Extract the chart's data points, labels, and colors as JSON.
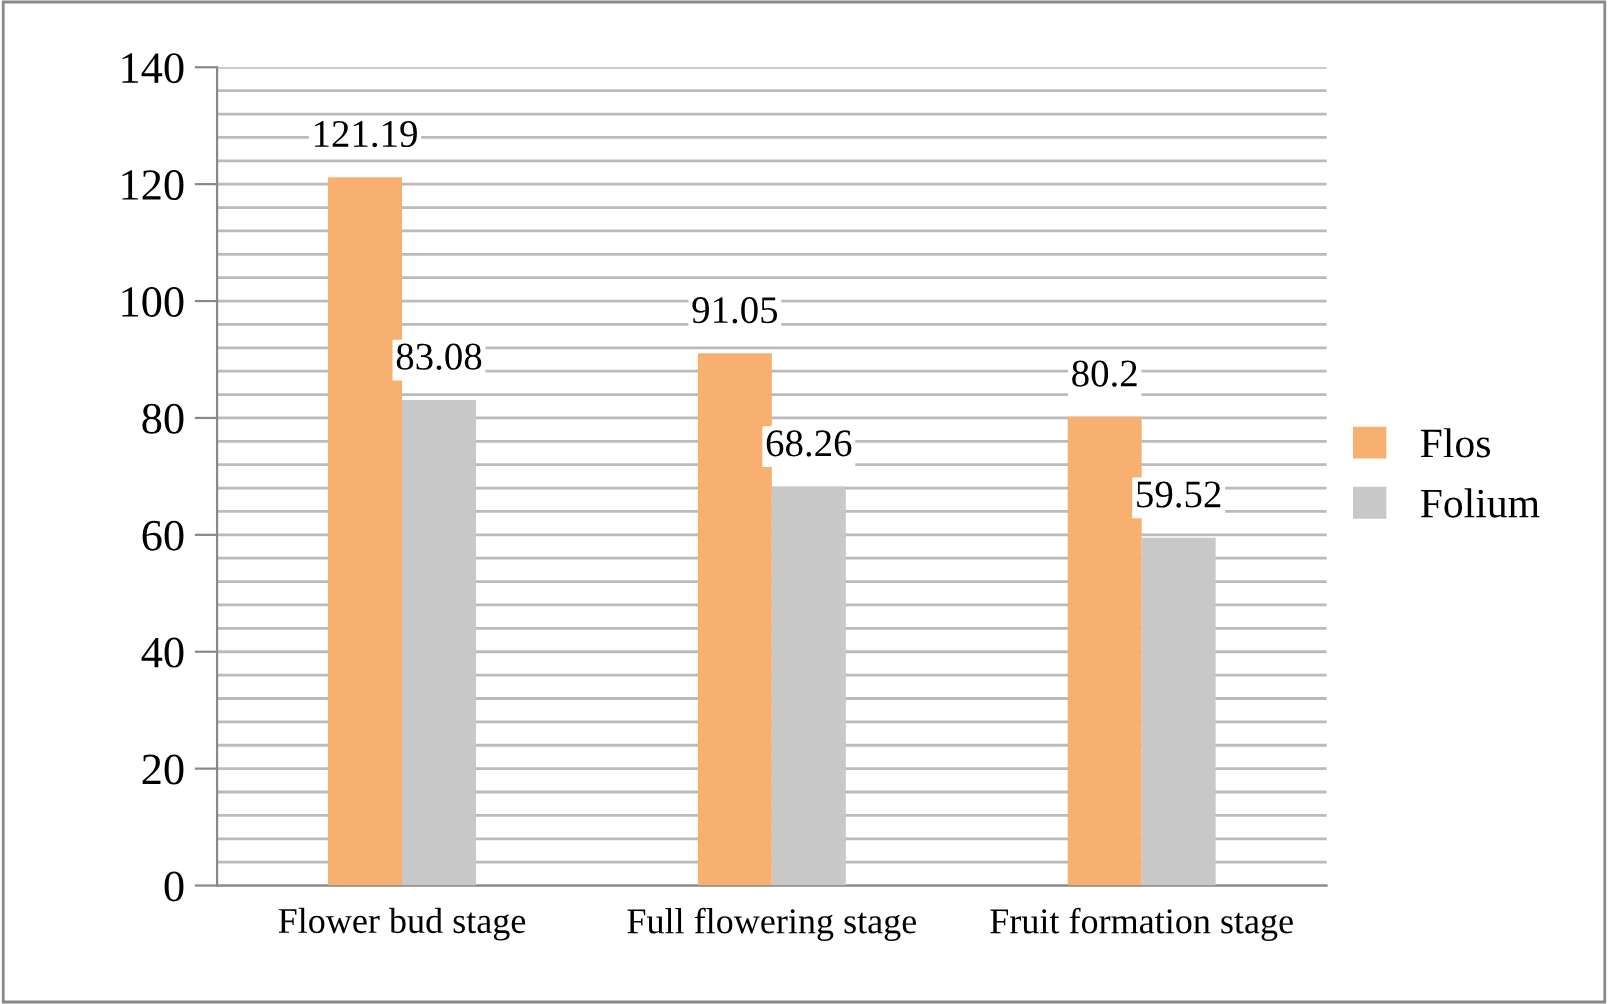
{
  "chart_data": {
    "type": "bar",
    "categories": [
      "Flower bud stage",
      "Full flowering stage",
      "Fruit formation stage"
    ],
    "series": [
      {
        "name": "Flos",
        "color": "#f8b070",
        "values": [
          121.19,
          91.05,
          80.2
        ]
      },
      {
        "name": "Folium",
        "color": "#c8c8c8",
        "values": [
          83.08,
          68.26,
          59.52
        ]
      }
    ],
    "ylim": [
      0,
      140
    ],
    "yticks": [
      0,
      {
        "value": 4,
        "label": null
      },
      {
        "value": 8,
        "label": null
      },
      {
        "value": 12,
        "label": null
      },
      {
        "value": 16,
        "label": null
      },
      20,
      {
        "value": 24,
        "label": null
      },
      {
        "value": 28,
        "label": null
      },
      {
        "value": 32,
        "label": null
      },
      {
        "value": 36,
        "label": null
      },
      40,
      {
        "value": 44,
        "label": null
      },
      {
        "value": 48,
        "label": null
      },
      {
        "value": 52,
        "label": null
      },
      {
        "value": 56,
        "label": null
      },
      60,
      {
        "value": 64,
        "label": null
      },
      {
        "value": 68,
        "label": null
      },
      {
        "value": 72,
        "label": null
      },
      {
        "value": 76,
        "label": null
      },
      80,
      {
        "value": 84,
        "label": null
      },
      {
        "value": 88,
        "label": null
      },
      {
        "value": 92,
        "label": null
      },
      {
        "value": 96,
        "label": null
      },
      100,
      {
        "value": 104,
        "label": null
      },
      {
        "value": 108,
        "label": null
      },
      {
        "value": 112,
        "label": null
      },
      {
        "value": 116,
        "label": null
      },
      120,
      {
        "value": 124,
        "label": null
      },
      {
        "value": 128,
        "label": null
      },
      {
        "value": 132,
        "label": null
      },
      {
        "value": 136,
        "label": null
      },
      140
    ],
    "grid": "y",
    "legend": "right",
    "data_labels": true
  }
}
